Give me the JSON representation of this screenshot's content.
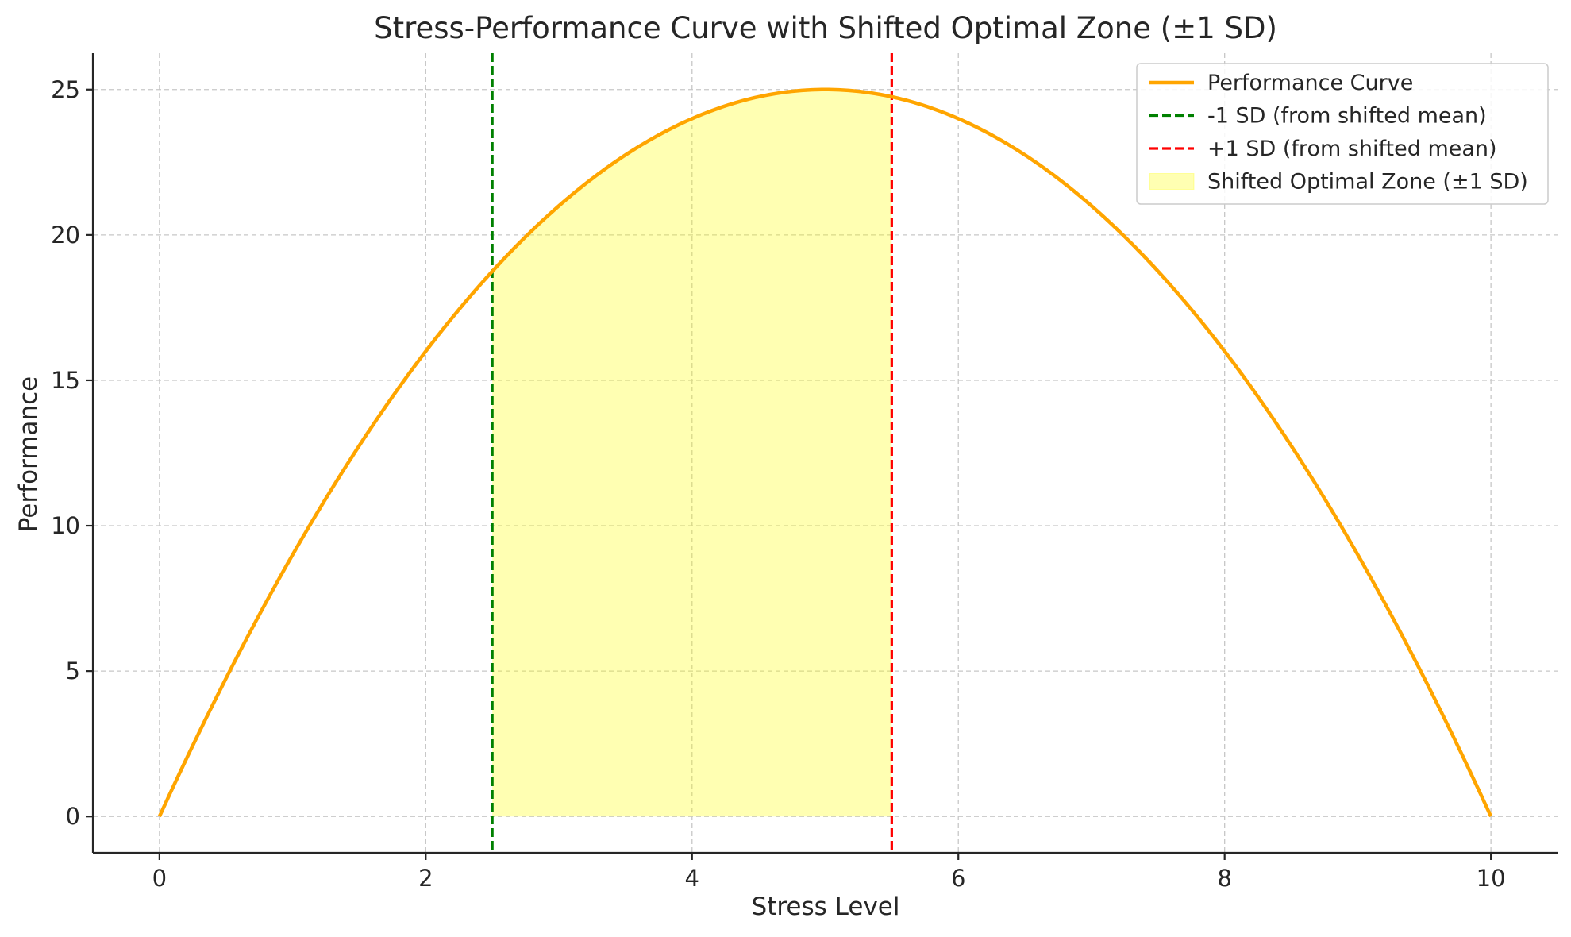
{
  "chart_data": {
    "type": "line",
    "title": "Stress-Performance Curve with Shifted Optimal Zone (±1 SD)",
    "xlabel": "Stress Level",
    "ylabel": "Performance",
    "xlim": [
      -0.5,
      10.5
    ],
    "ylim": [
      -1.25,
      26.25
    ],
    "xticks": [
      0,
      2,
      4,
      6,
      8,
      10
    ],
    "yticks": [
      0,
      5,
      10,
      15,
      20,
      25
    ],
    "grid": true,
    "legend_position": "top-right",
    "series": [
      {
        "name": "Performance Curve",
        "function": "x*(10-x)",
        "x": [
          0,
          0.5,
          1,
          1.5,
          2,
          2.5,
          3,
          3.5,
          4,
          4.5,
          5,
          5.5,
          6,
          6.5,
          7,
          7.5,
          8,
          8.5,
          9,
          9.5,
          10
        ],
        "y": [
          0,
          4.75,
          9,
          12.75,
          16,
          18.75,
          21,
          22.75,
          24,
          24.75,
          25,
          24.75,
          24,
          22.75,
          21,
          18.75,
          16,
          12.75,
          9,
          4.75,
          0
        ],
        "color": "#FFA500"
      }
    ],
    "vlines": [
      {
        "name": "-1 SD (from shifted mean)",
        "x": 2.5,
        "color": "#008000",
        "style": "dashed"
      },
      {
        "name": "+1 SD (from shifted mean)",
        "x": 5.5,
        "color": "#FF0000",
        "style": "dashed"
      }
    ],
    "shaded_region": {
      "name": "Shifted Optimal Zone (±1 SD)",
      "x_start": 2.5,
      "x_end": 5.5,
      "color": "#FFFF00",
      "opacity": 0.3
    },
    "legend": [
      {
        "label": "Performance Curve",
        "kind": "line",
        "color": "#FFA500"
      },
      {
        "label": "-1 SD (from shifted mean)",
        "kind": "dashed",
        "color": "#008000"
      },
      {
        "label": "+1 SD (from shifted mean)",
        "kind": "dashed",
        "color": "#FF0000"
      },
      {
        "label": "Shifted Optimal Zone (±1 SD)",
        "kind": "patch",
        "color": "#FFFF00"
      }
    ]
  }
}
